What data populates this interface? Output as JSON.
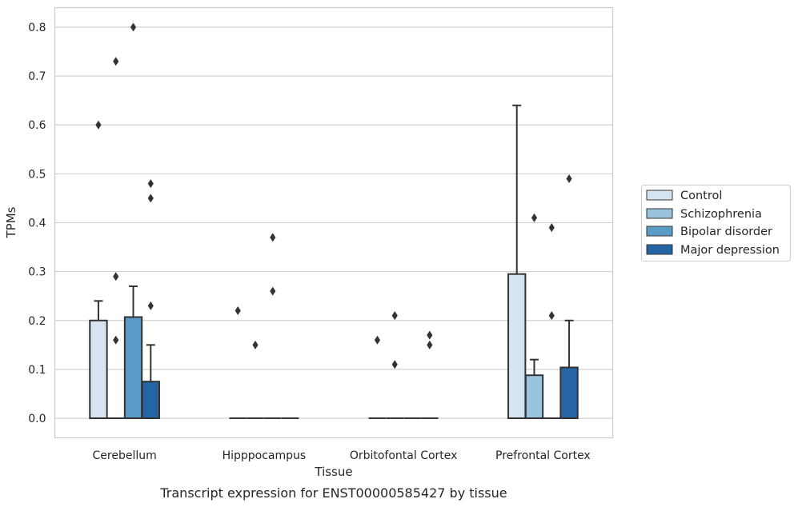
{
  "caption": "Transcript expression for ENST00000585427 by tissue",
  "chart_data": {
    "type": "box",
    "xlabel": "Tissue",
    "ylabel": "TPMs",
    "ylim": [
      -0.04,
      0.84
    ],
    "yticks": [
      "0.0",
      "0.1",
      "0.2",
      "0.3",
      "0.4",
      "0.5",
      "0.6",
      "0.7",
      "0.8"
    ],
    "grid": true,
    "legend_placement": "right",
    "categories": [
      "Cerebellum",
      "Hipppocampus",
      "Orbitofontal Cortex",
      "Prefrontal Cortex"
    ],
    "series": [
      {
        "name": "Control",
        "color": "#d6e4f1",
        "boxes": [
          {
            "q1": 0.0,
            "median": 0.0,
            "q3": 0.2,
            "whisker_low": 0.0,
            "whisker_high": 0.24,
            "outliers": [
              0.6
            ]
          },
          {
            "q1": 0.0,
            "median": 0.0,
            "q3": 0.0,
            "whisker_low": 0.0,
            "whisker_high": 0.0,
            "outliers": [
              0.22
            ]
          },
          {
            "q1": 0.0,
            "median": 0.0,
            "q3": 0.0,
            "whisker_low": 0.0,
            "whisker_high": 0.0,
            "outliers": [
              0.16
            ]
          },
          {
            "q1": 0.0,
            "median": 0.0,
            "q3": 0.295,
            "whisker_low": 0.0,
            "whisker_high": 0.64,
            "outliers": []
          }
        ]
      },
      {
        "name": "Schizophrenia",
        "color": "#9ac3dd",
        "boxes": [
          {
            "q1": 0.0,
            "median": 0.0,
            "q3": 0.0,
            "whisker_low": 0.0,
            "whisker_high": 0.0,
            "outliers": [
              0.16,
              0.29,
              0.73
            ]
          },
          {
            "q1": 0.0,
            "median": 0.0,
            "q3": 0.0,
            "whisker_low": 0.0,
            "whisker_high": 0.0,
            "outliers": [
              0.15
            ]
          },
          {
            "q1": 0.0,
            "median": 0.0,
            "q3": 0.0,
            "whisker_low": 0.0,
            "whisker_high": 0.0,
            "outliers": [
              0.11,
              0.21
            ]
          },
          {
            "q1": 0.0,
            "median": 0.0,
            "q3": 0.088,
            "whisker_low": 0.0,
            "whisker_high": 0.12,
            "outliers": [
              0.41
            ]
          }
        ]
      },
      {
        "name": "Bipolar disorder",
        "color": "#5a9bc8",
        "boxes": [
          {
            "q1": 0.0,
            "median": 0.0,
            "q3": 0.207,
            "whisker_low": 0.0,
            "whisker_high": 0.27,
            "outliers": [
              0.8
            ]
          },
          {
            "q1": 0.0,
            "median": 0.0,
            "q3": 0.0,
            "whisker_low": 0.0,
            "whisker_high": 0.0,
            "outliers": [
              0.26,
              0.37
            ]
          },
          {
            "q1": 0.0,
            "median": 0.0,
            "q3": 0.0,
            "whisker_low": 0.0,
            "whisker_high": 0.0,
            "outliers": []
          },
          {
            "q1": 0.0,
            "median": 0.0,
            "q3": 0.0,
            "whisker_low": 0.0,
            "whisker_high": 0.0,
            "outliers": [
              0.21,
              0.39
            ]
          }
        ]
      },
      {
        "name": "Major depression",
        "color": "#2565a6",
        "boxes": [
          {
            "q1": 0.0,
            "median": 0.0,
            "q3": 0.075,
            "whisker_low": 0.0,
            "whisker_high": 0.15,
            "outliers": [
              0.23,
              0.45,
              0.48
            ]
          },
          {
            "q1": 0.0,
            "median": 0.0,
            "q3": 0.0,
            "whisker_low": 0.0,
            "whisker_high": 0.0,
            "outliers": []
          },
          {
            "q1": 0.0,
            "median": 0.0,
            "q3": 0.0,
            "whisker_low": 0.0,
            "whisker_high": 0.0,
            "outliers": [
              0.15,
              0.17
            ]
          },
          {
            "q1": 0.0,
            "median": 0.0,
            "q3": 0.104,
            "whisker_low": 0.0,
            "whisker_high": 0.2,
            "outliers": [
              0.49
            ]
          }
        ]
      }
    ],
    "colors": {
      "axis_frame": "#cccccc",
      "grid": "#cccccc",
      "box_edge": "#333333",
      "text": "#262626"
    }
  }
}
